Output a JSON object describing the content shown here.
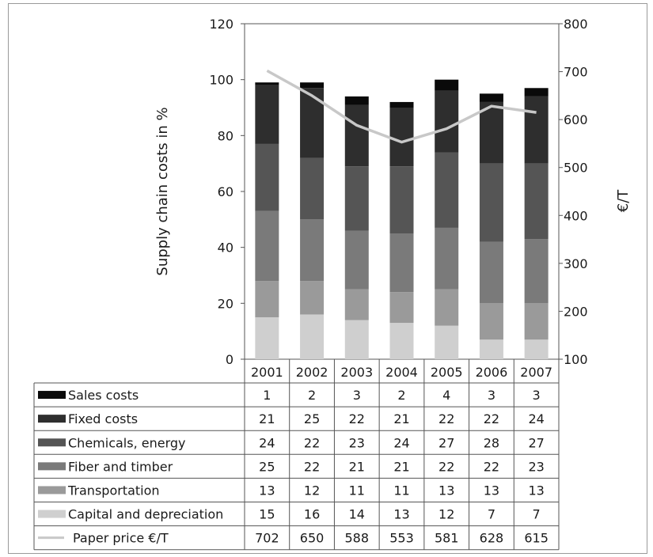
{
  "chart_data": {
    "type": "bar",
    "stacked": true,
    "categories": [
      "2001",
      "2002",
      "2003",
      "2004",
      "2005",
      "2006",
      "2007"
    ],
    "ylabel": "Supply chain costs in %",
    "y2label": "€/T",
    "ylim": [
      0,
      120
    ],
    "y2lim": [
      100,
      800
    ],
    "yticks": [
      "0",
      "20",
      "40",
      "60",
      "80",
      "100",
      "120"
    ],
    "y2ticks": [
      "100",
      "200",
      "300",
      "400",
      "500",
      "600",
      "700",
      "800"
    ],
    "grid": false,
    "legend_position": "table-below",
    "series": [
      {
        "name": "Capital and depreciation",
        "color": "#cfcfcf",
        "values": [
          15,
          16,
          14,
          13,
          12,
          7,
          7
        ]
      },
      {
        "name": "Transportation",
        "color": "#9a9a9a",
        "values": [
          13,
          12,
          11,
          11,
          13,
          13,
          13
        ]
      },
      {
        "name": "Fiber and timber",
        "color": "#7a7a7a",
        "values": [
          25,
          22,
          21,
          21,
          22,
          22,
          23
        ]
      },
      {
        "name": "Chemicals, energy",
        "color": "#555555",
        "values": [
          24,
          22,
          23,
          24,
          27,
          28,
          27
        ]
      },
      {
        "name": "Fixed costs",
        "color": "#2e2e2e",
        "values": [
          21,
          25,
          22,
          21,
          22,
          22,
          24
        ]
      },
      {
        "name": "Sales costs",
        "color": "#0a0a0a",
        "values": [
          1,
          2,
          3,
          2,
          4,
          3,
          3
        ]
      }
    ],
    "line_series": {
      "name": "Paper price €/T",
      "axis": "right",
      "color": "#c8c8c8",
      "values": [
        702,
        650,
        588,
        553,
        581,
        628,
        615
      ]
    },
    "table_row_order": [
      "Sales costs",
      "Fixed costs",
      "Chemicals, energy",
      "Fiber and timber",
      "Transportation",
      "Capital and depreciation",
      "Paper price €/T"
    ]
  }
}
